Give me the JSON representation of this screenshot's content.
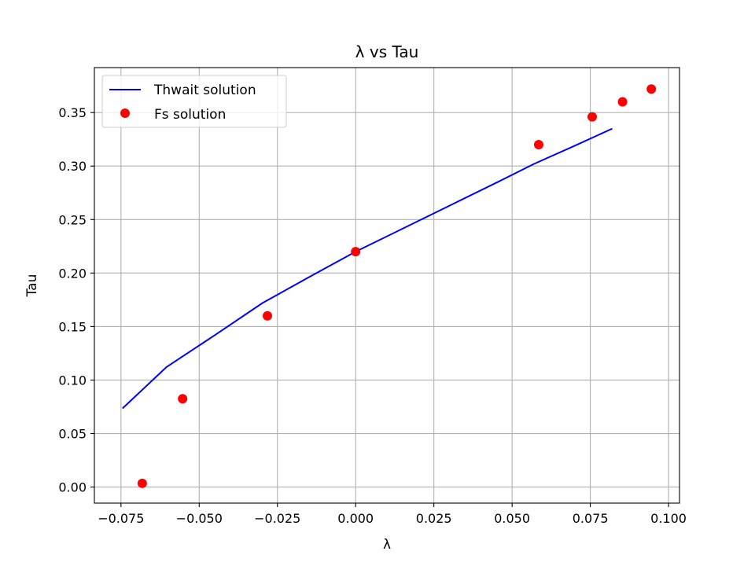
{
  "chart_data": {
    "type": "line",
    "title": "λ vs Tau",
    "xlabel": "λ",
    "ylabel": "Tau",
    "xlim": [
      -0.0835,
      0.1035
    ],
    "ylim": [
      -0.015,
      0.392
    ],
    "xticks": [
      -0.075,
      -0.05,
      -0.025,
      0.0,
      0.025,
      0.05,
      0.075,
      0.1
    ],
    "xtick_labels": [
      "−0.075",
      "−0.050",
      "−0.025",
      "0.000",
      "0.025",
      "0.050",
      "0.075",
      "0.100"
    ],
    "yticks": [
      0.0,
      0.05,
      0.1,
      0.15,
      0.2,
      0.25,
      0.3,
      0.35
    ],
    "ytick_labels": [
      "0.00",
      "0.05",
      "0.10",
      "0.15",
      "0.20",
      "0.25",
      "0.30",
      "0.35"
    ],
    "grid": true,
    "legend_position": "upper-left",
    "series": [
      {
        "name": "Thwait solution",
        "kind": "line",
        "color": "#0000ff",
        "x": [
          -0.0745,
          -0.0605,
          -0.045,
          -0.0298,
          -0.015,
          0.0,
          0.015,
          0.03,
          0.045,
          0.057,
          0.07,
          0.082
        ],
        "y": [
          0.0735,
          0.112,
          0.142,
          0.172,
          0.196,
          0.22,
          0.2415,
          0.263,
          0.2845,
          0.302,
          0.319,
          0.335
        ]
      },
      {
        "name": "Fs solution",
        "kind": "scatter",
        "color": "#ff0000",
        "x": [
          -0.0682,
          -0.0553,
          -0.0282,
          0.0,
          0.0585,
          0.0756,
          0.0853,
          0.0945
        ],
        "y": [
          0.0035,
          0.0825,
          0.16,
          0.22,
          0.32,
          0.346,
          0.36,
          0.372
        ]
      }
    ]
  }
}
